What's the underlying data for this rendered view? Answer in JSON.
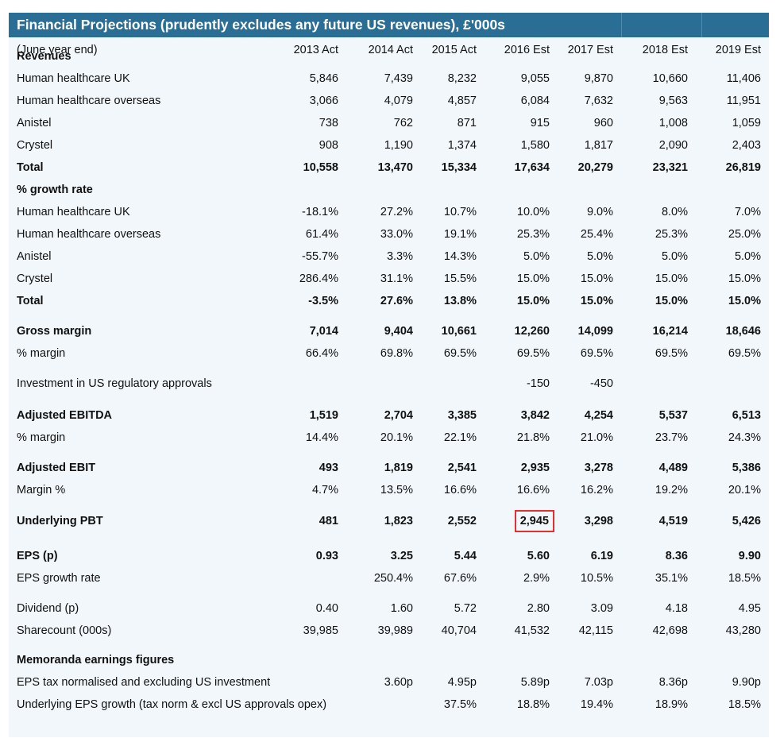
{
  "title": "Financial Projections (prudently excludes any future US revenues), £'000s",
  "header": {
    "label": "(June year end)",
    "years": [
      "2013 Act",
      "2014 Act",
      "2015 Act",
      "2016 Est",
      "2017 Est",
      "2018 Est",
      "2019 Est"
    ]
  },
  "rows": [
    {
      "label": "Revenues",
      "bold": true,
      "values": [
        "",
        "",
        "",
        "",
        "",
        "",
        ""
      ]
    },
    {
      "label": "Human healthcare UK",
      "bold": false,
      "values": [
        "5,846",
        "7,439",
        "8,232",
        "9,055",
        "9,870",
        "10,660",
        "11,406"
      ]
    },
    {
      "label": "Human healthcare overseas",
      "bold": false,
      "values": [
        "3,066",
        "4,079",
        "4,857",
        "6,084",
        "7,632",
        "9,563",
        "11,951"
      ]
    },
    {
      "label": "Anistel",
      "bold": false,
      "values": [
        "738",
        "762",
        "871",
        "915",
        "960",
        "1,008",
        "1,059"
      ]
    },
    {
      "label": "Crystel",
      "bold": false,
      "values": [
        "908",
        "1,190",
        "1,374",
        "1,580",
        "1,817",
        "2,090",
        "2,403"
      ]
    },
    {
      "label": "Total",
      "bold": true,
      "values": [
        "10,558",
        "13,470",
        "15,334",
        "17,634",
        "20,279",
        "23,321",
        "26,819"
      ]
    },
    {
      "label": "% growth rate",
      "bold": true,
      "values": [
        "",
        "",
        "",
        "",
        "",
        "",
        ""
      ]
    },
    {
      "label": "Human healthcare UK",
      "bold": false,
      "values": [
        "-18.1%",
        "27.2%",
        "10.7%",
        "10.0%",
        "9.0%",
        "8.0%",
        "7.0%"
      ]
    },
    {
      "label": "Human healthcare overseas",
      "bold": false,
      "values": [
        "61.4%",
        "33.0%",
        "19.1%",
        "25.3%",
        "25.4%",
        "25.3%",
        "25.0%"
      ]
    },
    {
      "label": "Anistel",
      "bold": false,
      "values": [
        "-55.7%",
        "3.3%",
        "14.3%",
        "5.0%",
        "5.0%",
        "5.0%",
        "5.0%"
      ]
    },
    {
      "label": "Crystel",
      "bold": false,
      "values": [
        "286.4%",
        "31.1%",
        "15.5%",
        "15.0%",
        "15.0%",
        "15.0%",
        "15.0%"
      ]
    },
    {
      "label": "Total",
      "bold": true,
      "values": [
        "-3.5%",
        "27.6%",
        "13.8%",
        "15.0%",
        "15.0%",
        "15.0%",
        "15.0%"
      ]
    },
    {
      "label": "Gross margin",
      "bold": true,
      "values": [
        "7,014",
        "9,404",
        "10,661",
        "12,260",
        "14,099",
        "16,214",
        "18,646"
      ]
    },
    {
      "label": "% margin",
      "bold": false,
      "values": [
        "66.4%",
        "69.8%",
        "69.5%",
        "69.5%",
        "69.5%",
        "69.5%",
        "69.5%"
      ]
    },
    {
      "label": "Investment in US regulatory approvals",
      "bold": false,
      "values": [
        "",
        "",
        "",
        "-150",
        "-450",
        "",
        ""
      ]
    },
    {
      "label": "Adjusted EBITDA",
      "bold": true,
      "values": [
        "1,519",
        "2,704",
        "3,385",
        "3,842",
        "4,254",
        "5,537",
        "6,513"
      ]
    },
    {
      "label": "% margin",
      "bold": false,
      "values": [
        "14.4%",
        "20.1%",
        "22.1%",
        "21.8%",
        "21.0%",
        "23.7%",
        "24.3%"
      ]
    },
    {
      "label": "Adjusted EBIT",
      "bold": true,
      "values": [
        "493",
        "1,819",
        "2,541",
        "2,935",
        "3,278",
        "4,489",
        "5,386"
      ]
    },
    {
      "label": "Margin %",
      "bold": false,
      "values": [
        "4.7%",
        "13.5%",
        "16.6%",
        "16.6%",
        "16.2%",
        "19.2%",
        "20.1%"
      ]
    },
    {
      "label": "Underlying PBT",
      "bold": true,
      "values": [
        "481",
        "1,823",
        "2,552",
        "2,945",
        "3,298",
        "4,519",
        "5,426"
      ],
      "highlight_col": 3
    },
    {
      "label": "EPS (p)",
      "bold": true,
      "values": [
        "0.93",
        "3.25",
        "5.44",
        "5.60",
        "6.19",
        "8.36",
        "9.90"
      ]
    },
    {
      "label": "EPS growth rate",
      "bold": false,
      "values": [
        "",
        "250.4%",
        "67.6%",
        "2.9%",
        "10.5%",
        "35.1%",
        "18.5%"
      ]
    },
    {
      "label": "Dividend (p)",
      "bold": false,
      "values": [
        "0.40",
        "1.60",
        "5.72",
        "2.80",
        "3.09",
        "4.18",
        "4.95"
      ]
    },
    {
      "label": "Sharecount (000s)",
      "bold": false,
      "values": [
        "39,985",
        "39,989",
        "40,704",
        "41,532",
        "42,115",
        "42,698",
        "43,280"
      ]
    },
    {
      "label": "Memoranda earnings figures",
      "bold": true,
      "values": [
        "",
        "",
        "",
        "",
        "",
        "",
        ""
      ]
    },
    {
      "label": "EPS tax normalised and excluding US investment",
      "bold": false,
      "values": [
        "",
        "3.60p",
        "4.95p",
        "5.89p",
        "7.03p",
        "8.36p",
        "9.90p"
      ]
    },
    {
      "label": "Underlying EPS growth (tax norm & excl US approvals opex)",
      "bold": false,
      "values": [
        "",
        "",
        "37.5%",
        "18.8%",
        "19.4%",
        "18.9%",
        "18.5%"
      ]
    }
  ],
  "colors": {
    "title_bar": "#2a6e96",
    "background": "#f1f7fb",
    "highlight_border": "#e03030"
  }
}
